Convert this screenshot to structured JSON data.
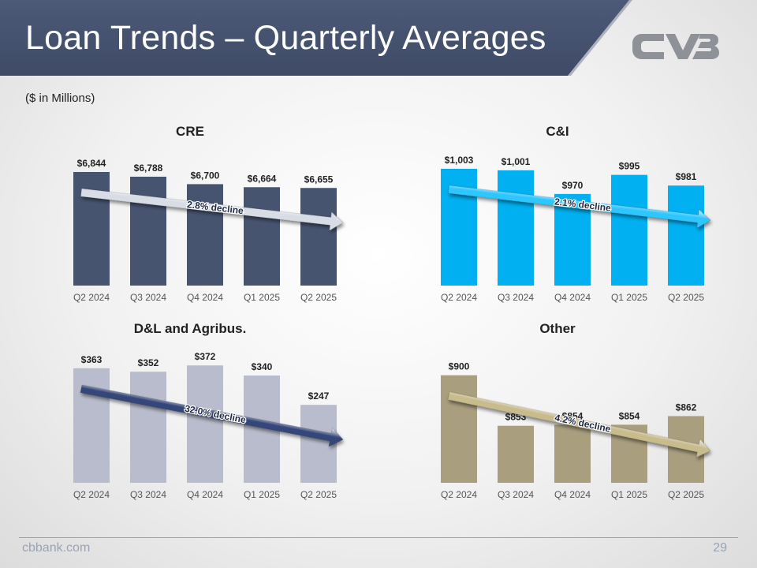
{
  "header": {
    "title": "Loan Trends – Quarterly Averages",
    "logo_text": "CVB",
    "banner_color": "#475470"
  },
  "subtitle": "($ in Millions)",
  "chart_data": [
    {
      "type": "bar",
      "title": "CRE",
      "categories": [
        "Q2 2024",
        "Q3 2024",
        "Q4 2024",
        "Q1 2025",
        "Q2 2025"
      ],
      "values": [
        6844,
        6788,
        6700,
        6664,
        6655
      ],
      "labels": [
        "$6,844",
        "$6,788",
        "$6,700",
        "$6,664",
        "$6,655"
      ],
      "ylim": [
        5500,
        6900
      ],
      "color": "#475470",
      "trend_label": "2.8% decline",
      "trend_color": "#d8dce4"
    },
    {
      "type": "bar",
      "title": "C&I",
      "categories": [
        "Q2 2024",
        "Q3 2024",
        "Q4 2024",
        "Q1 2025",
        "Q2 2025"
      ],
      "values": [
        1003,
        1001,
        970,
        995,
        981
      ],
      "labels": [
        "$1,003",
        "$1,001",
        "$970",
        "$995",
        "$981"
      ],
      "ylim": [
        850,
        1005
      ],
      "color": "#00b0f0",
      "trend_label": "2.1% decline",
      "trend_color": "#2ec6ff"
    },
    {
      "type": "bar",
      "title": "D&L and Agribus.",
      "categories": [
        "Q2 2024",
        "Q3 2024",
        "Q4 2024",
        "Q1 2025",
        "Q2 2025"
      ],
      "values": [
        363,
        352,
        372,
        340,
        247
      ],
      "labels": [
        "$363",
        "$352",
        "$372",
        "$340",
        "$247"
      ],
      "ylim": [
        0,
        375
      ],
      "color": "#b8bccc",
      "trend_label": "32.0% decline",
      "trend_color": "#35477a"
    },
    {
      "type": "bar",
      "title": "Other",
      "categories": [
        "Q2 2024",
        "Q3 2024",
        "Q4 2024",
        "Q1 2025",
        "Q2 2025"
      ],
      "values": [
        900,
        853,
        854,
        854,
        862
      ],
      "labels": [
        "$900",
        "$853",
        "$854",
        "$854",
        "$862"
      ],
      "ylim": [
        800,
        910
      ],
      "color": "#a99f7f",
      "trend_label": "4.2% decline",
      "trend_color": "#c8bb8c"
    }
  ],
  "footer": {
    "website": "cbbank.com",
    "page_number": "29"
  }
}
